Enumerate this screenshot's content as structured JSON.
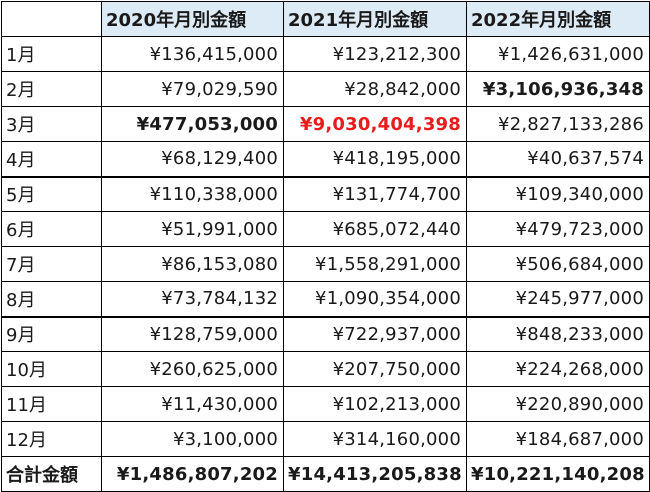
{
  "headers": [
    "",
    "2020年月別金額",
    "2021年月別金額",
    "2022年月別金額"
  ],
  "rows": [
    {
      "month": "1月",
      "v2020": "¥136,415,000",
      "v2021": "¥123,212,300",
      "v2022": "¥1,426,631,000"
    },
    {
      "month": "2月",
      "v2020": "¥79,029,590",
      "v2021": "¥28,842,000",
      "v2022": "¥3,106,936,348"
    },
    {
      "month": "3月",
      "v2020": "¥477,053,000",
      "v2021": "¥9,030,404,398",
      "v2022": "¥2,827,133,286"
    },
    {
      "month": "4月",
      "v2020": "¥68,129,400",
      "v2021": "¥418,195,000",
      "v2022": "¥40,637,574"
    },
    {
      "month": "5月",
      "v2020": "¥110,338,000",
      "v2021": "¥131,774,700",
      "v2022": "¥109,340,000"
    },
    {
      "month": "6月",
      "v2020": "¥51,991,000",
      "v2021": "¥685,072,440",
      "v2022": "¥479,723,000"
    },
    {
      "month": "7月",
      "v2020": "¥86,153,080",
      "v2021": "¥1,558,291,000",
      "v2022": "¥506,684,000"
    },
    {
      "month": "8月",
      "v2020": "¥73,784,132",
      "v2021": "¥1,090,354,000",
      "v2022": "¥245,977,000"
    },
    {
      "month": "9月",
      "v2020": "¥128,759,000",
      "v2021": "¥722,937,000",
      "v2022": "¥848,233,000"
    },
    {
      "month": "10月",
      "v2020": "¥260,625,000",
      "v2021": "¥207,750,000",
      "v2022": "¥224,268,000"
    },
    {
      "month": "11月",
      "v2020": "¥11,430,000",
      "v2021": "¥102,213,000",
      "v2022": "¥220,890,000"
    },
    {
      "month": "12月",
      "v2020": "¥3,100,000",
      "v2021": "¥314,160,000",
      "v2022": "¥184,687,000"
    }
  ],
  "total": {
    "label": "合計金額",
    "v2020": "¥1,486,807,202",
    "v2021": "¥14,413,205,838",
    "v2022": "¥10,221,140,208"
  },
  "colors": {
    "header_bg": "#ddebf7",
    "highlight_red": "#e81c1c",
    "border": "#000000"
  }
}
